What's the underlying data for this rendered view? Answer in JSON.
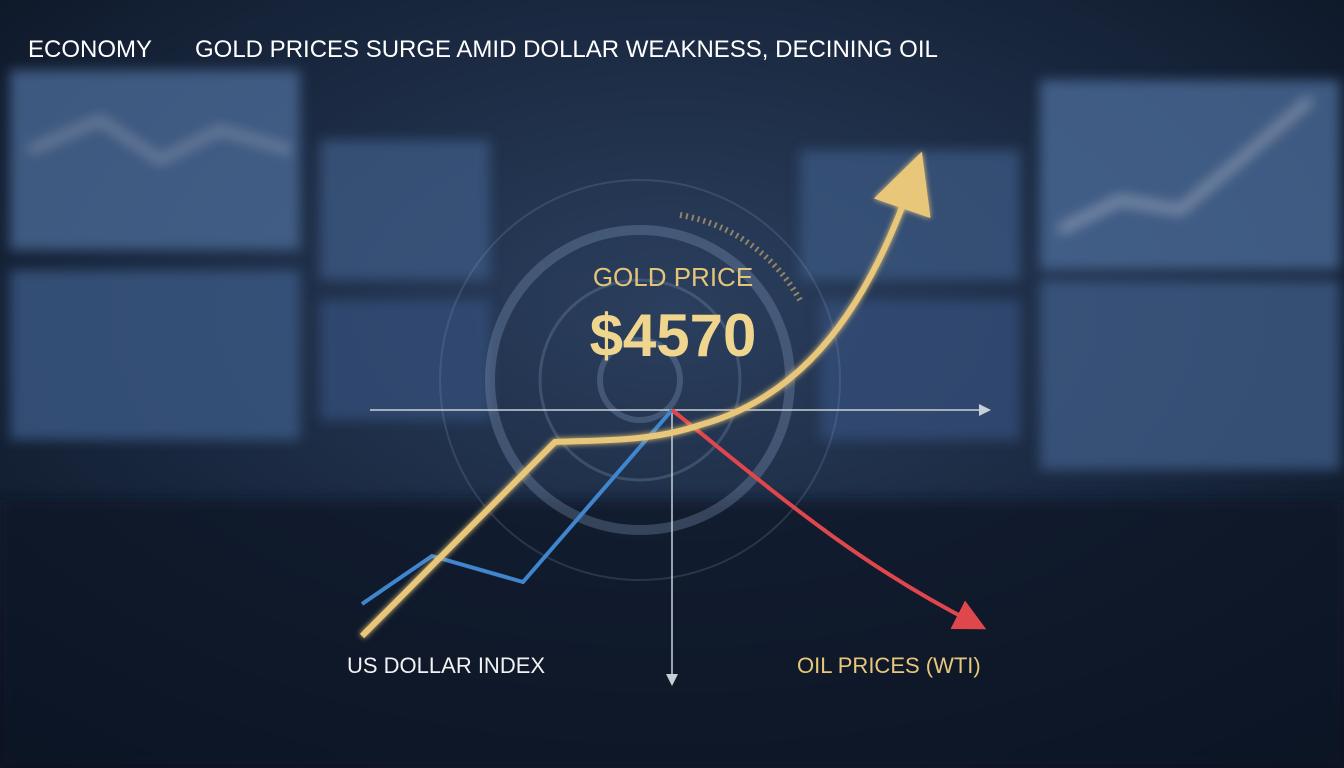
{
  "header": {
    "category": "ECONOMY",
    "title": "GOLD PRICES SURGE AMID DOLLAR WEAKNESS, DECINING OIL"
  },
  "gold": {
    "label": "GOLD PRICE",
    "value": "$4570"
  },
  "labels": {
    "dollar": "US DOLLAR INDEX",
    "oil": "OIL PRICES (WTI)"
  }
}
